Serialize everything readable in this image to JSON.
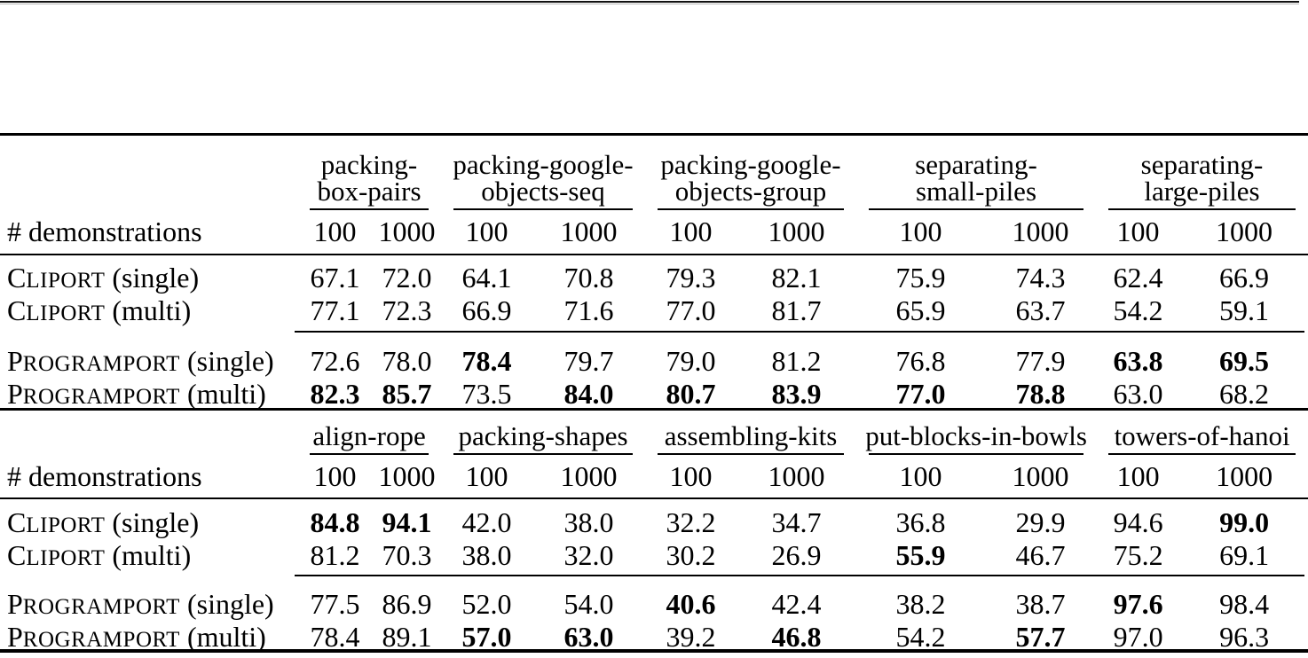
{
  "page": {
    "colors": {
      "background": "#ffffff",
      "text": "#000000",
      "rule": "#000000"
    }
  },
  "top_table": {
    "demo_label": "# demonstrations",
    "groups": [
      {
        "lines": [
          "packing-",
          "box-pairs"
        ]
      },
      {
        "lines": [
          "packing-google-",
          "objects-seq"
        ]
      },
      {
        "lines": [
          "packing-google-",
          "objects-group"
        ]
      },
      {
        "lines": [
          "separating-",
          "small-piles"
        ]
      },
      {
        "lines": [
          "separating-",
          "large-piles"
        ]
      }
    ],
    "counts": [
      "100",
      "1000",
      "100",
      "1000",
      "100",
      "1000",
      "100",
      "1000",
      "100",
      "1000"
    ],
    "rows": [
      {
        "model_lead": "C",
        "model_rest": "LIPORT",
        "variant": "(single)",
        "values": [
          "67.1",
          "72.0",
          "64.1",
          "70.8",
          "79.3",
          "82.1",
          "75.9",
          "74.3",
          "62.4",
          "66.9"
        ],
        "bold": [
          false,
          false,
          false,
          false,
          false,
          false,
          false,
          false,
          false,
          false
        ]
      },
      {
        "model_lead": "C",
        "model_rest": "LIPORT",
        "variant": "(multi)",
        "values": [
          "77.1",
          "72.3",
          "66.9",
          "71.6",
          "77.0",
          "81.7",
          "65.9",
          "63.7",
          "54.2",
          "59.1"
        ],
        "bold": [
          false,
          false,
          false,
          false,
          false,
          false,
          false,
          false,
          false,
          false
        ]
      },
      {
        "model_lead": "P",
        "model_rest": "ROGRAMPORT",
        "variant": "(single)",
        "values": [
          "72.6",
          "78.0",
          "78.4",
          "79.7",
          "79.0",
          "81.2",
          "76.8",
          "77.9",
          "63.8",
          "69.5"
        ],
        "bold": [
          false,
          false,
          true,
          false,
          false,
          false,
          false,
          false,
          true,
          true
        ]
      },
      {
        "model_lead": "P",
        "model_rest": "ROGRAMPORT",
        "variant": "(multi)",
        "values": [
          "82.3",
          "85.7",
          "73.5",
          "84.0",
          "80.7",
          "83.9",
          "77.0",
          "78.8",
          "63.0",
          "68.2"
        ],
        "bold": [
          true,
          true,
          false,
          true,
          true,
          true,
          true,
          true,
          false,
          false
        ]
      }
    ]
  },
  "bottom_table": {
    "demo_label": "# demonstrations",
    "groups": [
      {
        "lines": [
          "align-rope"
        ]
      },
      {
        "lines": [
          "packing-shapes"
        ]
      },
      {
        "lines": [
          "assembling-kits"
        ]
      },
      {
        "lines": [
          "put-blocks-in-bowls"
        ]
      },
      {
        "lines": [
          "towers-of-hanoi"
        ]
      }
    ],
    "counts": [
      "100",
      "1000",
      "100",
      "1000",
      "100",
      "1000",
      "100",
      "1000",
      "100",
      "1000"
    ],
    "rows": [
      {
        "model_lead": "C",
        "model_rest": "LIPORT",
        "variant": "(single)",
        "values": [
          "84.8",
          "94.1",
          "42.0",
          "38.0",
          "32.2",
          "34.7",
          "36.8",
          "29.9",
          "94.6",
          "99.0"
        ],
        "bold": [
          true,
          true,
          false,
          false,
          false,
          false,
          false,
          false,
          false,
          true
        ]
      },
      {
        "model_lead": "C",
        "model_rest": "LIPORT",
        "variant": "(multi)",
        "values": [
          "81.2",
          "70.3",
          "38.0",
          "32.0",
          "30.2",
          "26.9",
          "55.9",
          "46.7",
          "75.2",
          "69.1"
        ],
        "bold": [
          false,
          false,
          false,
          false,
          false,
          false,
          true,
          false,
          false,
          false
        ]
      },
      {
        "model_lead": "P",
        "model_rest": "ROGRAMPORT",
        "variant": "(single)",
        "values": [
          "77.5",
          "86.9",
          "52.0",
          "54.0",
          "40.6",
          "42.4",
          "38.2",
          "38.7",
          "97.6",
          "98.4"
        ],
        "bold": [
          false,
          false,
          false,
          false,
          true,
          false,
          false,
          false,
          true,
          false
        ]
      },
      {
        "model_lead": "P",
        "model_rest": "ROGRAMPORT",
        "variant": "(multi)",
        "values": [
          "78.4",
          "89.1",
          "57.0",
          "63.0",
          "39.2",
          "46.8",
          "54.2",
          "57.7",
          "97.0",
          "96.3"
        ],
        "bold": [
          false,
          false,
          true,
          true,
          false,
          true,
          false,
          true,
          false,
          false
        ]
      }
    ]
  }
}
